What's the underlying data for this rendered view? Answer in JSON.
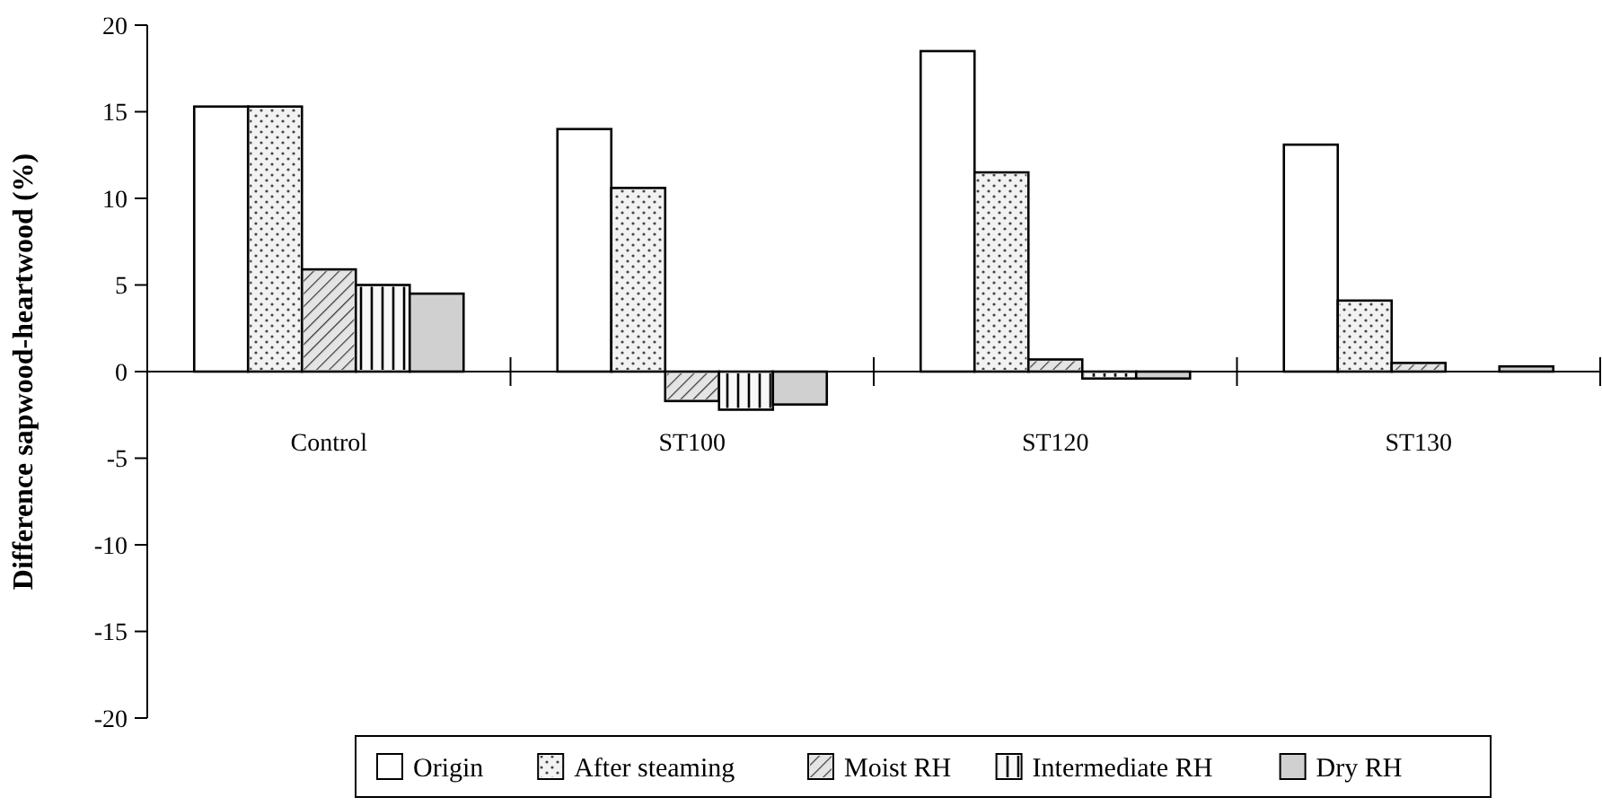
{
  "chart_data": {
    "type": "bar",
    "ylabel": "Difference sapwood-heartwood (%)",
    "categories": [
      "Control",
      "ST100",
      "ST120",
      "ST130"
    ],
    "series": [
      {
        "name": "Origin",
        "color": "#ffffff",
        "values": [
          15.3,
          14.0,
          18.5,
          13.1
        ]
      },
      {
        "name": "After steaming",
        "color": "#f2f2f2",
        "values": [
          15.3,
          10.6,
          11.5,
          4.1
        ]
      },
      {
        "name": "Moist RH",
        "color": "#e4e4e4",
        "values": [
          5.9,
          -1.7,
          0.7,
          0.5
        ]
      },
      {
        "name": "Intermediate RH",
        "color": "#f8f8f8",
        "values": [
          5.0,
          -2.2,
          -0.4,
          null
        ]
      },
      {
        "name": "Dry RH",
        "color": "#d0d0d0",
        "values": [
          4.5,
          -1.9,
          -0.4,
          0.3
        ]
      }
    ],
    "ylim": [
      -20,
      20
    ],
    "yticks": [
      -20,
      -15,
      -10,
      -5,
      0,
      5,
      10,
      15,
      20
    ],
    "grid": false,
    "legend": "bottom"
  }
}
